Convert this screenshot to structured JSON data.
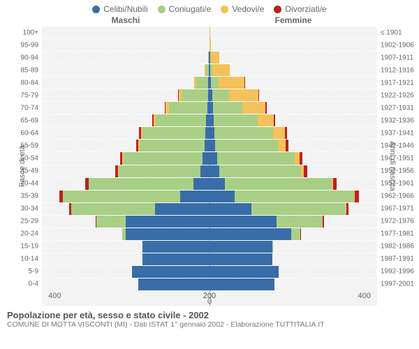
{
  "legend": [
    {
      "label": "Celibi/Nubili",
      "color": "#386da7"
    },
    {
      "label": "Coniugati/e",
      "color": "#a9cf86"
    },
    {
      "label": "Vedovi/e",
      "color": "#f5c15a"
    },
    {
      "label": "Divorziati/e",
      "color": "#c1201e"
    }
  ],
  "headers": {
    "male": "Maschi",
    "female": "Femmine"
  },
  "y_title_left": "Fasce di età",
  "y_title_right": "Anni di nascita",
  "x_ticks": [
    "0",
    "200",
    "400"
  ],
  "x_max": 400,
  "colors": {
    "single": "#386da7",
    "married": "#a9cf86",
    "widowed": "#f5c15a",
    "divorced": "#c1201e",
    "row_bg": "#e7e7e7",
    "divider": "#ffffff",
    "center": "#888888",
    "text": "#666666"
  },
  "rows": [
    {
      "age": "100+",
      "birth": "≤ 1901",
      "m": [
        0,
        0,
        0,
        0
      ],
      "f": [
        0,
        0,
        2,
        0
      ]
    },
    {
      "age": "95-99",
      "birth": "1902-1906",
      "m": [
        0,
        0,
        0,
        0
      ],
      "f": [
        0,
        0,
        4,
        0
      ]
    },
    {
      "age": "90-94",
      "birth": "1907-1911",
      "m": [
        1,
        1,
        2,
        0
      ],
      "f": [
        2,
        1,
        20,
        0
      ]
    },
    {
      "age": "85-89",
      "birth": "1912-1916",
      "m": [
        2,
        6,
        4,
        0
      ],
      "f": [
        2,
        5,
        42,
        0
      ]
    },
    {
      "age": "80-84",
      "birth": "1917-1921",
      "m": [
        3,
        28,
        6,
        0
      ],
      "f": [
        4,
        18,
        62,
        1
      ]
    },
    {
      "age": "75-79",
      "birth": "1922-1926",
      "m": [
        4,
        62,
        8,
        1
      ],
      "f": [
        6,
        40,
        70,
        2
      ]
    },
    {
      "age": "70-74",
      "birth": "1927-1931",
      "m": [
        5,
        92,
        8,
        2
      ],
      "f": [
        8,
        70,
        55,
        3
      ]
    },
    {
      "age": "65-69",
      "birth": "1932-1936",
      "m": [
        8,
        120,
        6,
        3
      ],
      "f": [
        10,
        105,
        38,
        4
      ]
    },
    {
      "age": "60-64",
      "birth": "1937-1941",
      "m": [
        10,
        150,
        4,
        4
      ],
      "f": [
        12,
        140,
        28,
        5
      ]
    },
    {
      "age": "55-59",
      "birth": "1942-1946",
      "m": [
        12,
        155,
        3,
        5
      ],
      "f": [
        14,
        150,
        18,
        6
      ]
    },
    {
      "age": "50-54",
      "birth": "1947-1951",
      "m": [
        16,
        190,
        2,
        6
      ],
      "f": [
        18,
        185,
        12,
        7
      ]
    },
    {
      "age": "45-49",
      "birth": "1952-1956",
      "m": [
        22,
        195,
        1,
        7
      ],
      "f": [
        24,
        195,
        6,
        8
      ]
    },
    {
      "age": "40-44",
      "birth": "1957-1961",
      "m": [
        38,
        250,
        1,
        8
      ],
      "f": [
        36,
        255,
        4,
        9
      ]
    },
    {
      "age": "35-39",
      "birth": "1962-1966",
      "m": [
        70,
        280,
        0,
        8
      ],
      "f": [
        60,
        285,
        2,
        9
      ]
    },
    {
      "age": "30-34",
      "birth": "1967-1971",
      "m": [
        130,
        200,
        0,
        5
      ],
      "f": [
        100,
        225,
        1,
        6
      ]
    },
    {
      "age": "25-29",
      "birth": "1972-1976",
      "m": [
        200,
        70,
        0,
        2
      ],
      "f": [
        160,
        110,
        0,
        3
      ]
    },
    {
      "age": "20-24",
      "birth": "1977-1981",
      "m": [
        200,
        8,
        0,
        0
      ],
      "f": [
        195,
        22,
        0,
        1
      ]
    },
    {
      "age": "15-19",
      "birth": "1982-1986",
      "m": [
        160,
        0,
        0,
        0
      ],
      "f": [
        150,
        1,
        0,
        0
      ]
    },
    {
      "age": "10-14",
      "birth": "1987-1991",
      "m": [
        160,
        0,
        0,
        0
      ],
      "f": [
        150,
        0,
        0,
        0
      ]
    },
    {
      "age": "5-9",
      "birth": "1992-1996",
      "m": [
        185,
        0,
        0,
        0
      ],
      "f": [
        165,
        0,
        0,
        0
      ]
    },
    {
      "age": "0-4",
      "birth": "1997-2001",
      "m": [
        170,
        0,
        0,
        0
      ],
      "f": [
        155,
        0,
        0,
        0
      ]
    }
  ],
  "title": "Popolazione per età, sesso e stato civile - 2002",
  "subtitle": "COMUNE DI MOTTA VISCONTI (MI) - Dati ISTAT 1° gennaio 2002 - Elaborazione TUTTITALIA.IT",
  "typography": {
    "title_fontsize": 13,
    "label_fontsize": 10,
    "tick_fontsize": 11
  }
}
